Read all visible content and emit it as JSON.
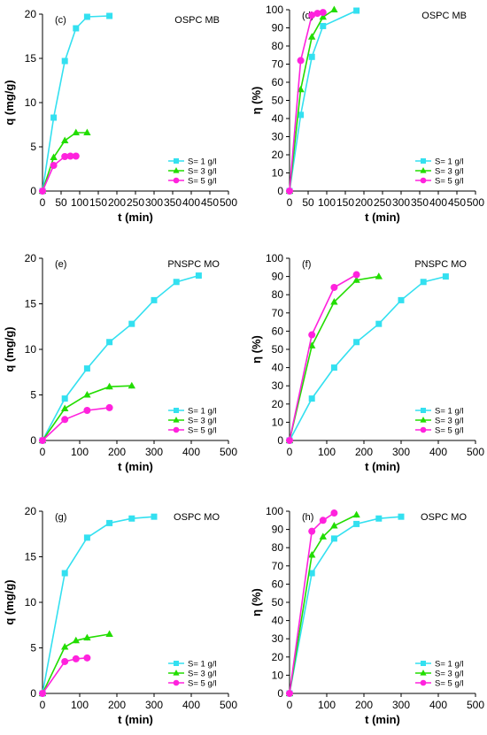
{
  "colors": {
    "s1": "#33e0f0",
    "s3": "#22dd00",
    "s5": "#ff22dd"
  },
  "chart_data": [
    {
      "type": "line",
      "panel_label": "(c)",
      "tag": "OSPC MB",
      "xlabel": "t (min)",
      "ylabel": "q (mg/g)",
      "xlim": [
        0,
        500
      ],
      "ylim": [
        0,
        20
      ],
      "xticks": [
        "0",
        "50",
        "100",
        "150",
        "200",
        "250",
        "300",
        "350",
        "400",
        "450",
        "500"
      ],
      "yticks": [
        "0",
        "5",
        "10",
        "15",
        "20"
      ],
      "legend_position": "bottom-right",
      "series": [
        {
          "name": "S= 1 g/l",
          "marker": "square",
          "x": [
            0,
            30,
            60,
            90,
            120,
            180
          ],
          "y": [
            0,
            8.3,
            14.7,
            18.4,
            19.7,
            19.8
          ]
        },
        {
          "name": "S= 3 g/l",
          "marker": "triangle",
          "x": [
            0,
            30,
            60,
            90,
            120
          ],
          "y": [
            0,
            3.8,
            5.7,
            6.6,
            6.6
          ]
        },
        {
          "name": "S= 5 g/l",
          "marker": "circle",
          "x": [
            0,
            30,
            60,
            75,
            90
          ],
          "y": [
            0,
            2.9,
            3.9,
            3.95,
            3.95
          ]
        }
      ]
    },
    {
      "type": "line",
      "panel_label": "(d)",
      "tag": "OSPC MB",
      "xlabel": "t (min)",
      "ylabel": "η (%)",
      "xlim": [
        0,
        500
      ],
      "ylim": [
        0,
        100
      ],
      "xticks": [
        "0",
        "50",
        "100",
        "150",
        "200",
        "250",
        "300",
        "350",
        "400",
        "450",
        "500"
      ],
      "yticks": [
        "0",
        "10",
        "20",
        "30",
        "40",
        "50",
        "60",
        "70",
        "80",
        "90",
        "100"
      ],
      "legend_position": "bottom-right",
      "series": [
        {
          "name": "S= 1 g/l",
          "marker": "square",
          "x": [
            0,
            30,
            60,
            90,
            180
          ],
          "y": [
            0,
            42,
            74,
            91,
            99.5
          ]
        },
        {
          "name": "S= 3 g/l",
          "marker": "triangle",
          "x": [
            0,
            30,
            60,
            90,
            120
          ],
          "y": [
            0,
            56,
            85,
            96,
            100
          ]
        },
        {
          "name": "S= 5 g/l",
          "marker": "circle",
          "x": [
            0,
            30,
            60,
            75,
            90
          ],
          "y": [
            0,
            72,
            97,
            98,
            98.5
          ]
        }
      ]
    },
    {
      "type": "line",
      "panel_label": "(e)",
      "tag": "PNSPC MO",
      "xlabel": "t (min)",
      "ylabel": "q (mg/g)",
      "xlim": [
        0,
        500
      ],
      "ylim": [
        0,
        20
      ],
      "xticks": [
        "0",
        "100",
        "200",
        "300",
        "400",
        "500"
      ],
      "yticks": [
        "0",
        "5",
        "10",
        "15",
        "20"
      ],
      "legend_position": "bottom-right",
      "series": [
        {
          "name": "S= 1 g/l",
          "marker": "square",
          "x": [
            0,
            60,
            120,
            180,
            240,
            300,
            360,
            420
          ],
          "y": [
            0,
            4.6,
            7.9,
            10.8,
            12.8,
            15.4,
            17.4,
            18.1
          ]
        },
        {
          "name": "S= 3 g/l",
          "marker": "triangle",
          "x": [
            0,
            60,
            120,
            180,
            240
          ],
          "y": [
            0,
            3.5,
            5.0,
            5.9,
            6.0
          ]
        },
        {
          "name": "S= 5 g/l",
          "marker": "circle",
          "x": [
            0,
            60,
            120,
            180
          ],
          "y": [
            0,
            2.3,
            3.3,
            3.6
          ]
        }
      ]
    },
    {
      "type": "line",
      "panel_label": "(f)",
      "tag": "PNSPC MO",
      "xlabel": "t (min)",
      "ylabel": "η (%)",
      "xlim": [
        0,
        500
      ],
      "ylim": [
        0,
        100
      ],
      "xticks": [
        "0",
        "100",
        "200",
        "300",
        "400",
        "500"
      ],
      "yticks": [
        "0",
        "10",
        "20",
        "30",
        "40",
        "50",
        "60",
        "70",
        "80",
        "90",
        "100"
      ],
      "legend_position": "bottom-right",
      "series": [
        {
          "name": "S= 1 g/l",
          "marker": "square",
          "x": [
            0,
            60,
            120,
            180,
            240,
            300,
            360,
            420
          ],
          "y": [
            0,
            23,
            40,
            54,
            64,
            77,
            87,
            90
          ]
        },
        {
          "name": "S= 3 g/l",
          "marker": "triangle",
          "x": [
            0,
            60,
            120,
            180,
            240
          ],
          "y": [
            0,
            52,
            76,
            88,
            90
          ]
        },
        {
          "name": "S= 5 g/l",
          "marker": "circle",
          "x": [
            0,
            60,
            120,
            180
          ],
          "y": [
            0,
            58,
            84,
            91
          ]
        }
      ]
    },
    {
      "type": "line",
      "panel_label": "(g)",
      "tag": "OSPC MO",
      "xlabel": "t (min)",
      "ylabel": "q (mg/g)",
      "xlim": [
        0,
        500
      ],
      "ylim": [
        0,
        20
      ],
      "xticks": [
        "0",
        "100",
        "200",
        "300",
        "400",
        "500"
      ],
      "yticks": [
        "0",
        "5",
        "10",
        "15",
        "20"
      ],
      "legend_position": "bottom-right",
      "series": [
        {
          "name": "S= 1 g/l",
          "marker": "square",
          "x": [
            0,
            60,
            120,
            180,
            240,
            300
          ],
          "y": [
            0,
            13.2,
            17.1,
            18.7,
            19.2,
            19.4
          ]
        },
        {
          "name": "S= 3 g/l",
          "marker": "triangle",
          "x": [
            0,
            60,
            90,
            120,
            180
          ],
          "y": [
            0,
            5.1,
            5.8,
            6.1,
            6.5
          ]
        },
        {
          "name": "S= 5 g/l",
          "marker": "circle",
          "x": [
            0,
            60,
            90,
            120
          ],
          "y": [
            0,
            3.5,
            3.8,
            3.9
          ]
        }
      ]
    },
    {
      "type": "line",
      "panel_label": "(h)",
      "tag": "OSPC MO",
      "xlabel": "t (min)",
      "ylabel": "η (%)",
      "xlim": [
        0,
        500
      ],
      "ylim": [
        0,
        100
      ],
      "xticks": [
        "0",
        "100",
        "200",
        "300",
        "400",
        "500"
      ],
      "yticks": [
        "0",
        "10",
        "20",
        "30",
        "40",
        "50",
        "60",
        "70",
        "80",
        "90",
        "100"
      ],
      "legend_position": "bottom-right",
      "series": [
        {
          "name": "S= 1 g/l",
          "marker": "square",
          "x": [
            0,
            60,
            120,
            180,
            240,
            300
          ],
          "y": [
            0,
            66,
            85,
            93,
            96,
            97
          ]
        },
        {
          "name": "S= 3 g/l",
          "marker": "triangle",
          "x": [
            0,
            60,
            90,
            120,
            180
          ],
          "y": [
            0,
            76,
            86,
            92,
            98
          ]
        },
        {
          "name": "S= 5 g/l",
          "marker": "circle",
          "x": [
            0,
            60,
            90,
            120
          ],
          "y": [
            0,
            89,
            95,
            99
          ]
        }
      ]
    }
  ]
}
